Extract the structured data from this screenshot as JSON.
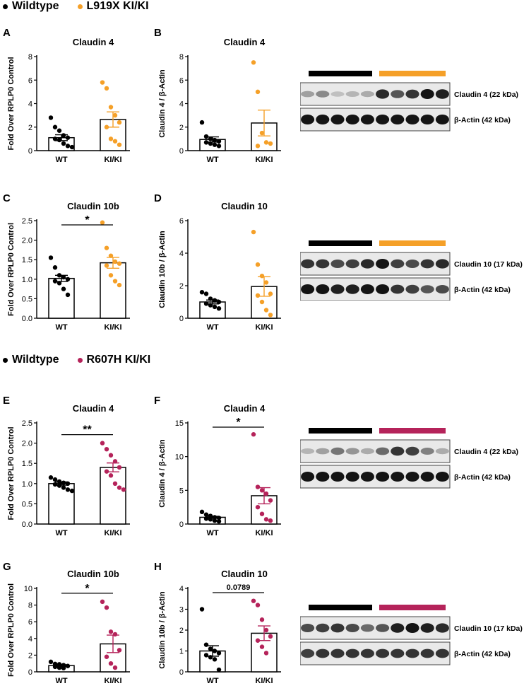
{
  "legends": [
    {
      "items": [
        {
          "label": "Wildtype",
          "color": "#000000"
        },
        {
          "label": "L919X KI/KI",
          "color": "#F5A028"
        }
      ]
    },
    {
      "items": [
        {
          "label": "Wildtype",
          "color": "#000000"
        },
        {
          "label": "R607H KI/KI",
          "color": "#B5235A"
        }
      ]
    }
  ],
  "colors": {
    "wt": "#000000",
    "l919x": "#F5A028",
    "r607h": "#B5235A"
  },
  "chart_data": [
    {
      "panel": "A",
      "type": "bar",
      "title": "Claudin 4",
      "ylabel": "Fold Over RPLP0 Control",
      "categories": [
        "WT",
        "KI/KI"
      ],
      "ylim": [
        0,
        8
      ],
      "yticks": [
        0,
        2,
        4,
        6,
        8
      ],
      "ytick_labels": [
        "0",
        "2",
        "4",
        "6",
        "8"
      ],
      "colors": [
        "#000000",
        "#F5A028"
      ],
      "significance": "",
      "series": [
        {
          "mean": 1.1,
          "sem": 0.25,
          "points": [
            2.8,
            2.0,
            1.7,
            1.3,
            1.1,
            1.0,
            0.9,
            0.6,
            0.4,
            0.3
          ]
        },
        {
          "mean": 2.65,
          "sem": 0.65,
          "points": [
            5.8,
            5.3,
            3.7,
            3.0,
            2.4,
            2.0,
            1.0,
            0.8,
            0.5
          ]
        }
      ]
    },
    {
      "panel": "B",
      "type": "bar",
      "title": "Claudin 4",
      "ylabel": "Claudin 4 / β-Actin",
      "categories": [
        "WT",
        "KI/KI"
      ],
      "ylim": [
        0,
        8
      ],
      "yticks": [
        0,
        2,
        4,
        6,
        8
      ],
      "ytick_labels": [
        "0",
        "2",
        "4",
        "6",
        "8"
      ],
      "colors": [
        "#000000",
        "#F5A028"
      ],
      "significance": "",
      "series": [
        {
          "mean": 0.95,
          "sem": 0.22,
          "points": [
            2.4,
            1.2,
            1.0,
            0.9,
            0.8,
            0.7,
            0.6,
            0.5,
            0.4
          ]
        },
        {
          "mean": 2.35,
          "sem": 1.1,
          "points": [
            7.5,
            5.0,
            1.5,
            0.7,
            0.6,
            0.4
          ]
        }
      ]
    },
    {
      "panel": "C",
      "type": "bar",
      "title": "Claudin 10b",
      "ylabel": "Fold Over RPLP0 Control",
      "categories": [
        "WT",
        "KI/KI"
      ],
      "ylim": [
        0,
        2.5
      ],
      "yticks": [
        0,
        0.5,
        1,
        1.5,
        2,
        2.5
      ],
      "ytick_labels": [
        "0.0",
        "0.5",
        "1.0",
        "1.5",
        "2.0",
        "2.5"
      ],
      "colors": [
        "#000000",
        "#F5A028"
      ],
      "significance": "*",
      "series": [
        {
          "mean": 1.02,
          "sem": 0.08,
          "points": [
            1.55,
            1.3,
            1.1,
            1.05,
            1.0,
            0.95,
            0.9,
            0.75,
            0.6
          ]
        },
        {
          "mean": 1.42,
          "sem": 0.14,
          "points": [
            2.45,
            1.8,
            1.6,
            1.45,
            1.4,
            1.35,
            1.1,
            0.95,
            0.85
          ]
        }
      ]
    },
    {
      "panel": "D",
      "type": "bar",
      "title": "Claudin 10",
      "ylabel": "Claudin 10b / β-Actin",
      "categories": [
        "WT",
        "KI/KI"
      ],
      "ylim": [
        0,
        6
      ],
      "yticks": [
        0,
        2,
        4,
        6
      ],
      "ytick_labels": [
        "0",
        "2",
        "4",
        "6"
      ],
      "colors": [
        "#000000",
        "#F5A028"
      ],
      "significance": "",
      "series": [
        {
          "mean": 1.0,
          "sem": 0.12,
          "points": [
            1.6,
            1.5,
            1.2,
            1.1,
            1.0,
            0.9,
            0.8,
            0.7,
            0.6
          ]
        },
        {
          "mean": 1.95,
          "sem": 0.6,
          "points": [
            5.3,
            3.3,
            2.6,
            2.2,
            1.5,
            1.4,
            1.0,
            0.5,
            0.2
          ]
        }
      ]
    },
    {
      "panel": "E",
      "type": "bar",
      "title": "Claudin 4",
      "ylabel": "Fold Over RPLP0 Control",
      "categories": [
        "WT",
        "KI/KI"
      ],
      "ylim": [
        0,
        2.5
      ],
      "yticks": [
        0,
        0.5,
        1,
        1.5,
        2,
        2.5
      ],
      "ytick_labels": [
        "0.0",
        "0.5",
        "1.0",
        "1.5",
        "2.0",
        "2.5"
      ],
      "colors": [
        "#000000",
        "#B5235A"
      ],
      "significance": "**",
      "series": [
        {
          "mean": 1.0,
          "sem": 0.04,
          "points": [
            1.15,
            1.1,
            1.05,
            1.02,
            1.0,
            0.98,
            0.95,
            0.9,
            0.85,
            0.82
          ]
        },
        {
          "mean": 1.4,
          "sem": 0.11,
          "points": [
            2.0,
            1.85,
            1.7,
            1.55,
            1.4,
            1.3,
            1.2,
            1.0,
            0.9,
            0.85
          ]
        }
      ]
    },
    {
      "panel": "F",
      "type": "bar",
      "title": "Claudin 4",
      "ylabel": "Claudin 4 / β-Actin",
      "categories": [
        "WT",
        "KI/KI"
      ],
      "ylim": [
        0,
        15
      ],
      "yticks": [
        0,
        5,
        10,
        15
      ],
      "ytick_labels": [
        "0",
        "5",
        "10",
        "15"
      ],
      "colors": [
        "#000000",
        "#B5235A"
      ],
      "significance": "*",
      "series": [
        {
          "mean": 1.0,
          "sem": 0.15,
          "points": [
            1.8,
            1.4,
            1.2,
            1.0,
            0.9,
            0.8,
            0.7,
            0.5,
            0.4
          ]
        },
        {
          "mean": 4.2,
          "sem": 1.2,
          "points": [
            13.3,
            5.5,
            5.0,
            4.5,
            3.5,
            2.5,
            1.5,
            0.7,
            0.5
          ]
        }
      ]
    },
    {
      "panel": "G",
      "type": "bar",
      "title": "Claudin 10b",
      "ylabel": "Fold Over RPLP0 Control",
      "categories": [
        "WT",
        "KI/KI"
      ],
      "ylim": [
        0,
        10
      ],
      "yticks": [
        0,
        2,
        4,
        6,
        8,
        10
      ],
      "ytick_labels": [
        "0",
        "2",
        "4",
        "6",
        "8",
        "10"
      ],
      "colors": [
        "#000000",
        "#B5235A"
      ],
      "significance": "*",
      "series": [
        {
          "mean": 0.75,
          "sem": 0.1,
          "points": [
            1.2,
            0.95,
            0.9,
            0.8,
            0.7,
            0.6,
            0.5,
            0.45
          ]
        },
        {
          "mean": 3.35,
          "sem": 1.05,
          "points": [
            8.4,
            7.7,
            4.8,
            4.5,
            2.6,
            1.8,
            1.0,
            0.5
          ]
        }
      ]
    },
    {
      "panel": "H",
      "type": "bar",
      "title": "Claudin 10",
      "ylabel": "Claudin 10b / β-Actin",
      "categories": [
        "WT",
        "KI/KI"
      ],
      "ylim": [
        0,
        4
      ],
      "yticks": [
        0,
        1,
        2,
        3,
        4
      ],
      "ytick_labels": [
        "0",
        "1",
        "2",
        "3",
        "4"
      ],
      "colors": [
        "#000000",
        "#B5235A"
      ],
      "significance": "0.0789",
      "series": [
        {
          "mean": 1.0,
          "sem": 0.25,
          "points": [
            3.0,
            1.3,
            1.1,
            1.0,
            0.9,
            0.8,
            0.7,
            0.6,
            0.1
          ]
        },
        {
          "mean": 1.85,
          "sem": 0.35,
          "points": [
            3.4,
            3.2,
            2.5,
            2.0,
            1.7,
            1.5,
            1.2,
            0.9
          ]
        }
      ]
    }
  ],
  "blots": [
    {
      "lanes": 10,
      "group_colors": [
        "#000000",
        "#F5A028"
      ],
      "bands": [
        {
          "label": "Claudin 4 (22 kDa)",
          "intensity": [
            0.35,
            0.45,
            0.2,
            0.25,
            0.3,
            0.9,
            0.7,
            0.85,
            1.0,
            0.95
          ]
        },
        {
          "label": "β-Actin (42 kDa)",
          "intensity": [
            1,
            1,
            1,
            1,
            1,
            1,
            1,
            1,
            1,
            1
          ]
        }
      ]
    },
    {
      "lanes": 10,
      "group_colors": [
        "#000000",
        "#F5A028"
      ],
      "bands": [
        {
          "label": "Claudin 10 (17 kDa)",
          "intensity": [
            0.85,
            0.85,
            0.75,
            0.8,
            0.9,
            1.0,
            0.8,
            0.75,
            0.85,
            0.9
          ]
        },
        {
          "label": "β-Actin (42 kDa)",
          "intensity": [
            1,
            1,
            0.95,
            0.95,
            1,
            1,
            0.85,
            0.8,
            0.7,
            0.75
          ]
        }
      ]
    },
    {
      "lanes": 10,
      "group_colors": [
        "#000000",
        "#B5235A"
      ],
      "bands": [
        {
          "label": "Claudin 4 (22 kDa)",
          "intensity": [
            0.25,
            0.35,
            0.55,
            0.4,
            0.3,
            0.6,
            0.85,
            0.8,
            0.5,
            0.3
          ]
        },
        {
          "label": "β-Actin (42 kDa)",
          "intensity": [
            1,
            1,
            1,
            1,
            1,
            1,
            1,
            1,
            1,
            1
          ]
        }
      ]
    },
    {
      "lanes": 10,
      "group_colors": [
        "#000000",
        "#B5235A"
      ],
      "bands": [
        {
          "label": "Claudin 10 (17 kDa)",
          "intensity": [
            0.75,
            0.8,
            0.85,
            0.75,
            0.6,
            0.7,
            0.95,
            1.0,
            0.95,
            0.9
          ]
        },
        {
          "label": "β-Actin (42 kDa)",
          "intensity": [
            0.8,
            0.85,
            0.85,
            0.85,
            0.85,
            0.85,
            0.85,
            0.85,
            0.85,
            0.85
          ]
        }
      ]
    }
  ]
}
